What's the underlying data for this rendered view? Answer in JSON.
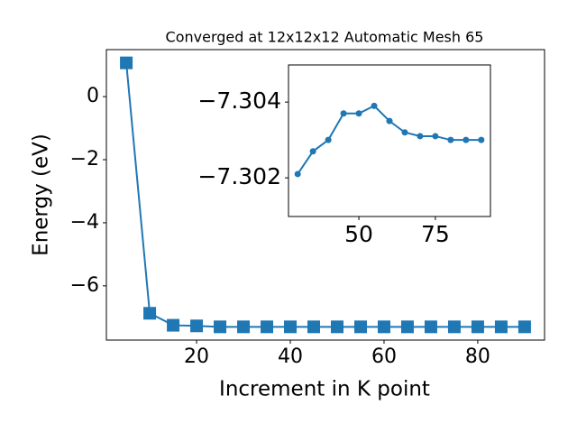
{
  "chart_data": [
    {
      "type": "line",
      "title": "Converged at 12x12x12 Automatic Mesh 65",
      "x_label": "Increment in K point",
      "y_label": "Energy (eV)",
      "x": [
        5,
        10,
        15,
        20,
        25,
        30,
        35,
        40,
        45,
        50,
        55,
        60,
        65,
        70,
        75,
        80,
        85,
        90
      ],
      "series": [
        {
          "color": "#1f77b4",
          "marker": "square",
          "values": [
            1.07,
            -6.87,
            -7.25,
            -7.27,
            -7.3,
            -7.3,
            -7.3,
            -7.3,
            -7.3,
            -7.3,
            -7.3,
            -7.3,
            -7.3,
            -7.3,
            -7.3,
            -7.3,
            -7.3,
            -7.3
          ]
        }
      ],
      "xlim": [
        0.75,
        94.25
      ],
      "xticks": [
        20,
        40,
        60,
        80
      ],
      "ylim": [
        -7.72,
        1.49
      ],
      "yticks": [
        {
          "value": -6,
          "label": "−6"
        },
        {
          "value": -4,
          "label": "−4"
        },
        {
          "value": -2,
          "label": "−2"
        },
        0
      ]
    },
    {
      "type": "line",
      "x": [
        30,
        35,
        40,
        45,
        50,
        55,
        60,
        65,
        70,
        75,
        80,
        85,
        90
      ],
      "series": [
        {
          "color": "#1f77b4",
          "marker": "circle",
          "values": [
            -7.3021,
            -7.3027,
            -7.303,
            -7.3037,
            -7.3037,
            -7.3039,
            -7.3035,
            -7.3032,
            -7.3031,
            -7.3031,
            -7.303,
            -7.303,
            -7.303
          ]
        }
      ],
      "xlim": [
        27,
        93
      ],
      "xticks": [
        50,
        75
      ],
      "ylim": [
        -7.30098,
        -7.30498
      ],
      "yticks": [
        {
          "value": -7.302,
          "label": "−7.302"
        },
        {
          "value": -7.304,
          "label": "−7.304"
        }
      ]
    }
  ]
}
